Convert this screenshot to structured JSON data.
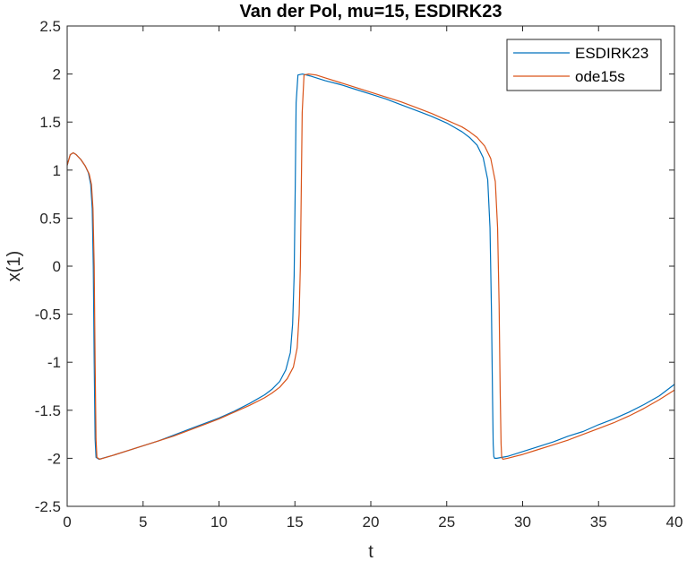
{
  "chart_data": {
    "type": "line",
    "title": "Van der Pol, mu=15, ESDIRK23",
    "xlabel": "t",
    "ylabel": "x(1)",
    "xlim": [
      0,
      40
    ],
    "ylim": [
      -2.5,
      2.5
    ],
    "x_ticks": [
      0,
      5,
      10,
      15,
      20,
      25,
      30,
      35,
      40
    ],
    "x_tick_labels": [
      "0",
      "5",
      "10",
      "15",
      "20",
      "25",
      "30",
      "35",
      "40"
    ],
    "y_ticks": [
      2.5,
      2,
      1.5,
      1,
      0.5,
      0,
      -0.5,
      -1,
      -1.5,
      -2,
      -2.5
    ],
    "y_tick_labels": [
      "2.5",
      "2",
      "1.5",
      "1",
      "0.5",
      "0",
      "-0.5",
      "-1",
      "-1.5",
      "-2",
      "-2.5"
    ],
    "grid": false,
    "legend_position": "top-right",
    "series": [
      {
        "name": "ESDIRK23",
        "color": "#0072BD",
        "x": [
          0,
          0.2,
          0.4,
          0.6,
          0.9,
          1.2,
          1.4,
          1.55,
          1.65,
          1.72,
          1.78,
          1.84,
          1.9,
          2.1,
          3,
          4,
          5,
          6,
          7,
          8,
          9,
          10,
          11,
          12,
          13,
          13.5,
          14,
          14.4,
          14.7,
          14.85,
          14.95,
          15.02,
          15.08,
          15.2,
          15.5,
          16,
          17,
          18,
          19,
          20,
          21,
          22,
          23,
          24,
          25,
          26,
          26.5,
          27,
          27.4,
          27.7,
          27.85,
          27.95,
          28.02,
          28.06,
          28.1,
          28.15,
          28.3,
          29,
          30,
          31,
          32,
          33,
          34,
          35,
          36,
          37,
          38,
          39,
          40
        ],
        "y": [
          1.05,
          1.16,
          1.18,
          1.16,
          1.11,
          1.04,
          0.97,
          0.85,
          0.6,
          0.0,
          -1.0,
          -1.8,
          -1.99,
          -2.01,
          -1.97,
          -1.92,
          -1.87,
          -1.82,
          -1.76,
          -1.7,
          -1.64,
          -1.58,
          -1.51,
          -1.43,
          -1.34,
          -1.28,
          -1.2,
          -1.08,
          -0.9,
          -0.6,
          -0.1,
          0.8,
          1.7,
          1.99,
          2.0,
          1.98,
          1.93,
          1.89,
          1.84,
          1.79,
          1.74,
          1.68,
          1.62,
          1.56,
          1.49,
          1.4,
          1.34,
          1.26,
          1.13,
          0.9,
          0.4,
          -0.5,
          -1.4,
          -1.85,
          -1.98,
          -2.0,
          -2.0,
          -1.98,
          -1.93,
          -1.88,
          -1.83,
          -1.77,
          -1.72,
          -1.65,
          -1.59,
          -1.52,
          -1.44,
          -1.35,
          -1.23
        ]
      },
      {
        "name": "ode15s",
        "color": "#D95319",
        "x": [
          0,
          0.2,
          0.4,
          0.6,
          0.9,
          1.2,
          1.45,
          1.6,
          1.7,
          1.78,
          1.84,
          1.9,
          1.96,
          2.15,
          3,
          4,
          5,
          6,
          7,
          8,
          9,
          10,
          11,
          12,
          13,
          13.5,
          14,
          14.5,
          14.9,
          15.15,
          15.28,
          15.36,
          15.42,
          15.48,
          15.6,
          15.9,
          16.4,
          17,
          18,
          19,
          20,
          21,
          22,
          23,
          24,
          25,
          26,
          26.5,
          27,
          27.5,
          27.9,
          28.2,
          28.35,
          28.45,
          28.52,
          28.58,
          28.62,
          28.7,
          29,
          30,
          31,
          32,
          33,
          34,
          35,
          36,
          37,
          38,
          39,
          40
        ],
        "y": [
          1.05,
          1.16,
          1.18,
          1.16,
          1.11,
          1.04,
          0.96,
          0.85,
          0.6,
          0.0,
          -1.0,
          -1.8,
          -1.99,
          -2.01,
          -1.97,
          -1.92,
          -1.87,
          -1.82,
          -1.77,
          -1.71,
          -1.65,
          -1.59,
          -1.52,
          -1.45,
          -1.37,
          -1.32,
          -1.26,
          -1.17,
          -1.05,
          -0.85,
          -0.5,
          0.0,
          0.8,
          1.6,
          1.99,
          2.0,
          1.99,
          1.96,
          1.91,
          1.86,
          1.81,
          1.76,
          1.71,
          1.65,
          1.59,
          1.52,
          1.45,
          1.4,
          1.34,
          1.25,
          1.12,
          0.88,
          0.4,
          -0.4,
          -1.3,
          -1.85,
          -1.99,
          -2.01,
          -2.0,
          -1.96,
          -1.91,
          -1.86,
          -1.81,
          -1.75,
          -1.69,
          -1.63,
          -1.56,
          -1.48,
          -1.39,
          -1.29
        ]
      }
    ]
  }
}
